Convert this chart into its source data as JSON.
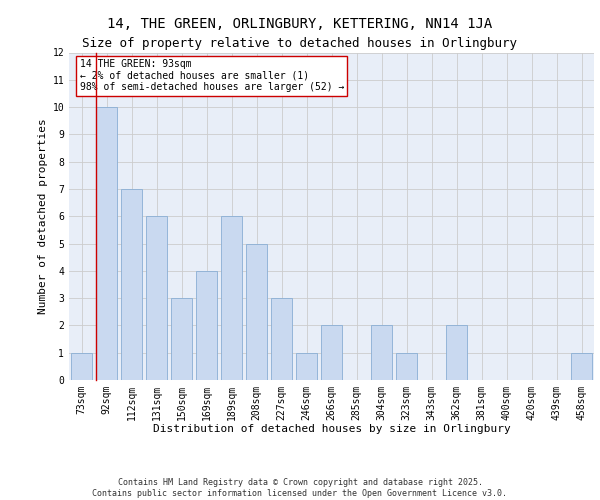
{
  "title1": "14, THE GREEN, ORLINGBURY, KETTERING, NN14 1JA",
  "title2": "Size of property relative to detached houses in Orlingbury",
  "xlabel": "Distribution of detached houses by size in Orlingbury",
  "ylabel": "Number of detached properties",
  "categories": [
    "73sqm",
    "92sqm",
    "112sqm",
    "131sqm",
    "150sqm",
    "169sqm",
    "189sqm",
    "208sqm",
    "227sqm",
    "246sqm",
    "266sqm",
    "285sqm",
    "304sqm",
    "323sqm",
    "343sqm",
    "362sqm",
    "381sqm",
    "400sqm",
    "420sqm",
    "439sqm",
    "458sqm"
  ],
  "values": [
    1,
    10,
    7,
    6,
    3,
    4,
    6,
    5,
    3,
    1,
    2,
    0,
    2,
    1,
    0,
    2,
    0,
    0,
    0,
    0,
    1
  ],
  "bar_color": "#c9d9f0",
  "bar_edge_color": "#8aaed4",
  "highlight_index": 1,
  "highlight_line_color": "#cc0000",
  "annotation_text": "14 THE GREEN: 93sqm\n← 2% of detached houses are smaller (1)\n98% of semi-detached houses are larger (52) →",
  "annotation_box_color": "#ffffff",
  "annotation_box_edge_color": "#cc0000",
  "ylim": [
    0,
    12
  ],
  "yticks": [
    0,
    1,
    2,
    3,
    4,
    5,
    6,
    7,
    8,
    9,
    10,
    11,
    12
  ],
  "grid_color": "#cccccc",
  "bg_color": "#e8eef8",
  "footer_text": "Contains HM Land Registry data © Crown copyright and database right 2025.\nContains public sector information licensed under the Open Government Licence v3.0.",
  "title1_fontsize": 10,
  "title2_fontsize": 9,
  "xlabel_fontsize": 8,
  "ylabel_fontsize": 8,
  "tick_fontsize": 7,
  "annotation_fontsize": 7,
  "footer_fontsize": 6
}
